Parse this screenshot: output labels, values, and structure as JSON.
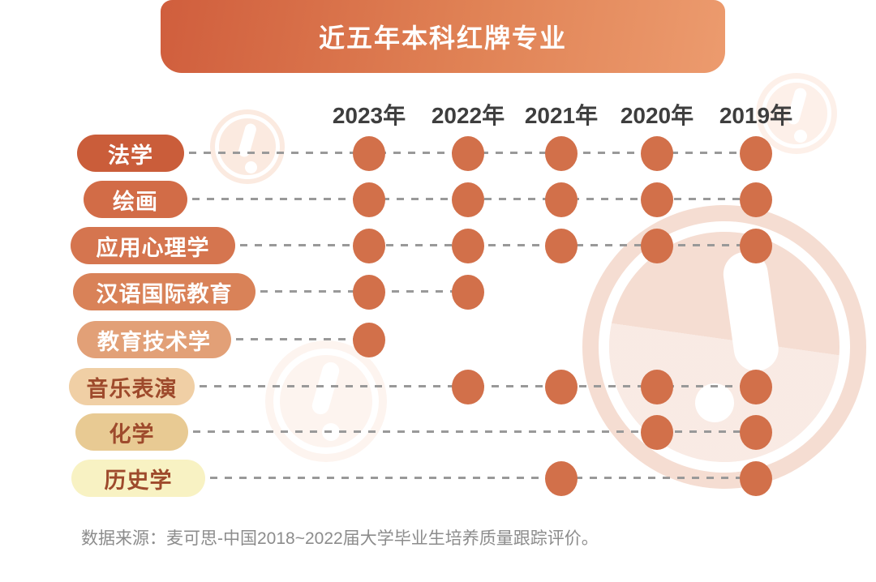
{
  "header": {
    "title": "近五年本科红牌专业"
  },
  "year_header": [
    "2023年",
    "2022年",
    "2021年",
    "2020年",
    "2019年"
  ],
  "footer": {
    "source": "数据来源：麦可思-中国2018~2022届大学毕业生培养质量跟踪评价。"
  },
  "icons": {
    "watermark": "exclamation-circle-icon"
  },
  "colors": {
    "banner_gradient_left": "#d05e3d",
    "banner_gradient_right": "#ec9b6e",
    "banner_text": "#ffffff",
    "dot": "#d2704a",
    "dash": "#999999",
    "year_label": "#3e3e3e",
    "footer_text": "#8c8c8c",
    "watermark_large": "#f5ddd2",
    "watermark_small": "#fbeae0",
    "light_pill_text": "#9e4a2c"
  },
  "chart_data": {
    "type": "table",
    "title": "近五年本科红牌专业",
    "columns": [
      "2023年",
      "2022年",
      "2021年",
      "2020年",
      "2019年"
    ],
    "rows": [
      {
        "major": "法学",
        "flagged": [
          true,
          true,
          true,
          true,
          true
        ],
        "pill_color": "#ca5d3a",
        "text_color": "#ffffff"
      },
      {
        "major": "绘画",
        "flagged": [
          true,
          true,
          true,
          true,
          true
        ],
        "pill_color": "#d26c47",
        "text_color": "#ffffff"
      },
      {
        "major": "应用心理学",
        "flagged": [
          true,
          true,
          true,
          true,
          true
        ],
        "pill_color": "#d5754f",
        "text_color": "#ffffff"
      },
      {
        "major": "汉语国际教育",
        "flagged": [
          true,
          true,
          false,
          false,
          false
        ],
        "pill_color": "#d98258",
        "text_color": "#ffffff"
      },
      {
        "major": "教育技术学",
        "flagged": [
          true,
          false,
          false,
          false,
          false
        ],
        "pill_color": "#e2a077",
        "text_color": "#ffffff"
      },
      {
        "major": "音乐表演",
        "flagged": [
          false,
          true,
          true,
          true,
          true
        ],
        "pill_color": "#f0cfa5",
        "text_color": "#9e4a2c"
      },
      {
        "major": "化学",
        "flagged": [
          false,
          false,
          false,
          true,
          true
        ],
        "pill_color": "#e8ca93",
        "text_color": "#9e4a2c"
      },
      {
        "major": "历史学",
        "flagged": [
          false,
          false,
          true,
          false,
          true
        ],
        "pill_color": "#f8f2c3",
        "text_color": "#9e4a2c"
      }
    ],
    "source_note": "数据来源：麦可思-中国2018~2022届大学毕业生培养质量跟踪评价。"
  }
}
